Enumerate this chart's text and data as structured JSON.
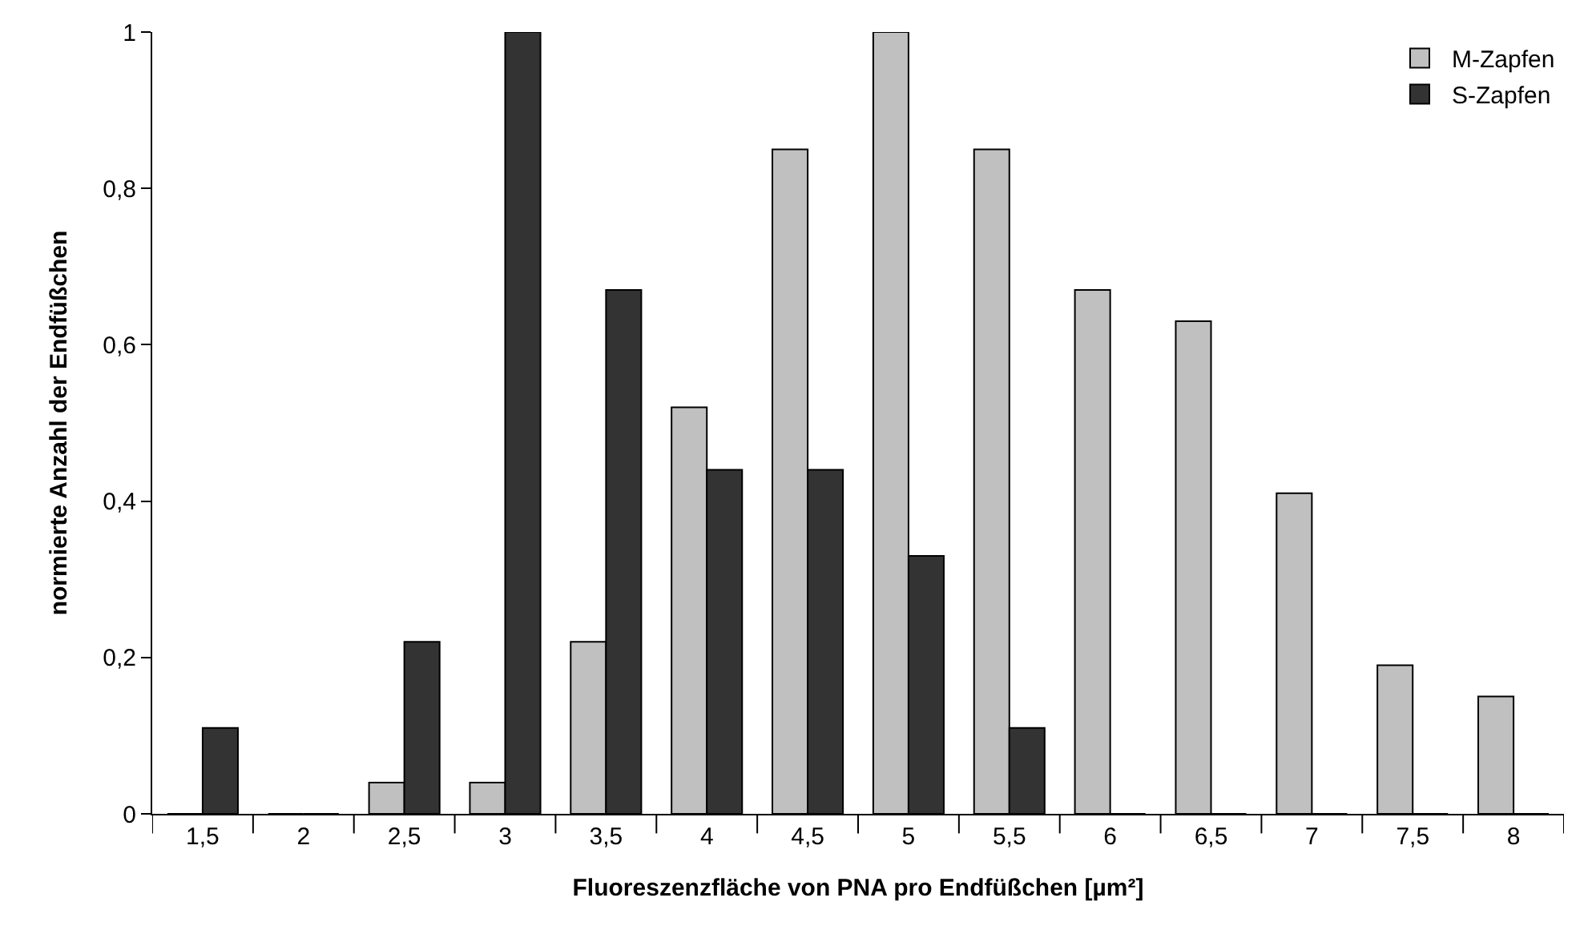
{
  "chart_data": {
    "type": "bar",
    "xlabel": "Fluoreszenzfläche von PNA pro Endfüßchen [µm²]",
    "ylabel": "normierte Anzahl der Endfüßchen",
    "categories": [
      "1,5",
      "2",
      "2,5",
      "3",
      "3,5",
      "4",
      "4,5",
      "5",
      "5,5",
      "6",
      "6,5",
      "7",
      "7,5",
      "8"
    ],
    "series": [
      {
        "name": "M-Zapfen",
        "color": "#c0c0c0",
        "values": [
          0,
          0,
          0.04,
          0.04,
          0.22,
          0.52,
          0.85,
          1,
          0.85,
          0.67,
          0.63,
          0.41,
          0.19,
          0.15
        ]
      },
      {
        "name": "S-Zapfen",
        "color": "#333333",
        "values": [
          0.11,
          0,
          0.22,
          1,
          0.67,
          0.44,
          0.44,
          0.33,
          0.11,
          0,
          0,
          0,
          0,
          0
        ]
      }
    ],
    "ylim": [
      0,
      1
    ],
    "yticks": [
      0,
      {
        "value": 0.2,
        "label": "0,2"
      },
      {
        "value": 0.4,
        "label": "0,4"
      },
      {
        "value": 0.6,
        "label": "0,6"
      },
      {
        "value": 0.8,
        "label": "0,8"
      },
      1
    ],
    "grid": false,
    "legend": "top right"
  }
}
